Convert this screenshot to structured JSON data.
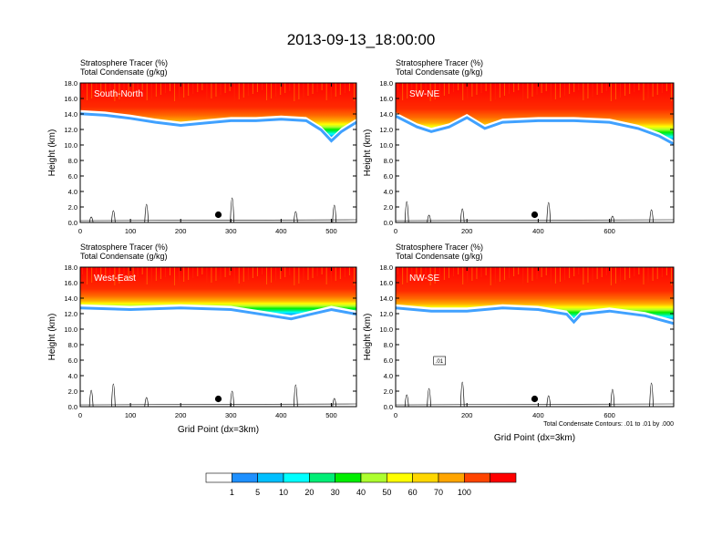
{
  "title": "2013-09-13_18:00:00",
  "chart_data": [
    {
      "type": "heatmap",
      "panel_label": "South-North",
      "var_label_1": "Stratosphere Tracer   (%)",
      "var_label_2": "Total Condensate   (g/kg)",
      "ylabel": "Height (km)",
      "xlabel": "",
      "xlim": [
        0,
        550
      ],
      "ylim": [
        0,
        18
      ],
      "xticks": [
        "0",
        "100",
        "200",
        "300",
        "400",
        "500"
      ],
      "yticks": [
        "0.0",
        "2.0",
        "4.0",
        "6.0",
        "8.0",
        "10.0",
        "12.0",
        "14.0",
        "16.0",
        "18.0"
      ],
      "tropopause_km": [
        [
          0,
          14.5
        ],
        [
          50,
          14.3
        ],
        [
          100,
          13.9
        ],
        [
          150,
          13.4
        ],
        [
          200,
          13.0
        ],
        [
          250,
          13.3
        ],
        [
          300,
          13.6
        ],
        [
          350,
          13.6
        ],
        [
          400,
          13.8
        ],
        [
          450,
          13.6
        ],
        [
          480,
          12.4
        ],
        [
          500,
          11.0
        ],
        [
          520,
          12.2
        ],
        [
          550,
          13.4
        ]
      ],
      "marker_x": 275,
      "marker_km": 1.0,
      "contour_label": "",
      "contour_note": ""
    },
    {
      "type": "heatmap",
      "panel_label": "SW-NE",
      "var_label_1": "Stratosphere Tracer   (%)",
      "var_label_2": "Total Condensate   (g/kg)",
      "ylabel": "Height (km)",
      "xlabel": "",
      "xlim": [
        0,
        780
      ],
      "ylim": [
        0,
        18
      ],
      "xticks": [
        "0",
        "200",
        "400",
        "600"
      ],
      "yticks": [
        "0.0",
        "2.0",
        "4.0",
        "6.0",
        "8.0",
        "10.0",
        "12.0",
        "14.0",
        "16.0",
        "18.0"
      ],
      "tropopause_km": [
        [
          0,
          14.2
        ],
        [
          60,
          12.8
        ],
        [
          100,
          12.2
        ],
        [
          150,
          12.8
        ],
        [
          200,
          14.0
        ],
        [
          250,
          12.6
        ],
        [
          300,
          13.4
        ],
        [
          400,
          13.6
        ],
        [
          500,
          13.6
        ],
        [
          600,
          13.4
        ],
        [
          680,
          12.6
        ],
        [
          740,
          11.6
        ],
        [
          780,
          10.6
        ]
      ],
      "marker_x": 390,
      "marker_km": 1.0,
      "contour_label": "",
      "contour_note": ""
    },
    {
      "type": "heatmap",
      "panel_label": "West-East",
      "var_label_1": "Stratosphere Tracer   (%)",
      "var_label_2": "Total Condensate   (g/kg)",
      "ylabel": "Height (km)",
      "xlabel": "Grid Point (dx=3km)",
      "xlim": [
        0,
        550
      ],
      "ylim": [
        0,
        18
      ],
      "xticks": [
        "0",
        "100",
        "200",
        "300",
        "400",
        "500"
      ],
      "yticks": [
        "0.0",
        "2.0",
        "4.0",
        "6.0",
        "8.0",
        "10.0",
        "12.0",
        "14.0",
        "16.0",
        "18.0"
      ],
      "tropopause_km": [
        [
          0,
          13.2
        ],
        [
          100,
          13.0
        ],
        [
          200,
          13.2
        ],
        [
          300,
          13.0
        ],
        [
          380,
          12.2
        ],
        [
          420,
          11.8
        ],
        [
          460,
          12.4
        ],
        [
          500,
          13.0
        ],
        [
          550,
          12.4
        ]
      ],
      "marker_x": 275,
      "marker_km": 1.0,
      "contour_label": "",
      "contour_note": ""
    },
    {
      "type": "heatmap",
      "panel_label": "NW-SE",
      "var_label_1": "Stratosphere Tracer   (%)",
      "var_label_2": "Total Condensate   (g/kg)",
      "ylabel": "Height (km)",
      "xlabel": "Grid Point (dx=3km)",
      "xlim": [
        0,
        780
      ],
      "ylim": [
        0,
        18
      ],
      "xticks": [
        "0",
        "200",
        "400",
        "600"
      ],
      "yticks": [
        "0.0",
        "2.0",
        "4.0",
        "6.0",
        "8.0",
        "10.0",
        "12.0",
        "14.0",
        "16.0",
        "18.0"
      ],
      "tropopause_km": [
        [
          0,
          13.2
        ],
        [
          100,
          12.8
        ],
        [
          200,
          12.8
        ],
        [
          300,
          13.2
        ],
        [
          400,
          13.0
        ],
        [
          480,
          12.4
        ],
        [
          500,
          11.4
        ],
        [
          520,
          12.4
        ],
        [
          600,
          12.8
        ],
        [
          700,
          12.2
        ],
        [
          780,
          11.2
        ]
      ],
      "marker_x": 390,
      "marker_km": 1.0,
      "contour_label": ".01",
      "contour_note": "Total Condensate Contours: .01 to .01 by .000"
    }
  ],
  "colorbar": {
    "levels": [
      "1",
      "5",
      "10",
      "20",
      "30",
      "40",
      "50",
      "60",
      "70",
      "100"
    ],
    "colors": [
      "#ffffff",
      "#1e90ff",
      "#00bfff",
      "#00ffff",
      "#00ee76",
      "#00ee00",
      "#adff2f",
      "#ffff00",
      "#ffd700",
      "#ffa500",
      "#ff4500",
      "#ff0000"
    ]
  }
}
